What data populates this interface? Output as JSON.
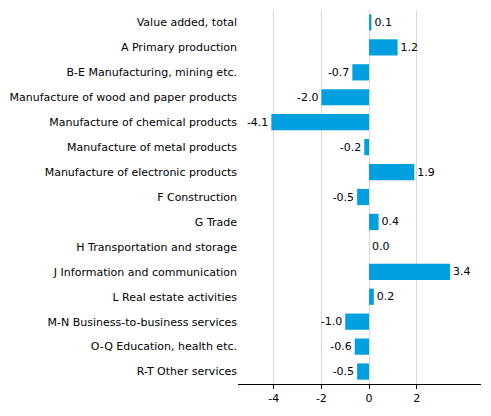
{
  "chart_data": {
    "type": "bar",
    "orientation": "horizontal",
    "categories": [
      "Value added, total",
      "A Primary production",
      "B-E Manufacturing, mining etc.",
      "Manufacture of wood and paper products",
      "Manufacture of chemical products",
      "Manufacture of metal products",
      "Manufacture of electronic products",
      "F Construction",
      "G Trade",
      "H Transportation and storage",
      "J Information and communication",
      "L Real estate activities",
      "M-N Business-to-business services",
      "O-Q Education, health etc.",
      "R-T Other services"
    ],
    "values": [
      0.1,
      1.2,
      -0.7,
      -2.0,
      -4.1,
      -0.2,
      1.9,
      -0.5,
      0.4,
      0.0,
      3.4,
      0.2,
      -1.0,
      -0.6,
      -0.5
    ],
    "value_labels": [
      "0.1",
      "1.2",
      "-0.7",
      "-2.0",
      "-4.1",
      "-0.2",
      "1.9",
      "-0.5",
      "0.4",
      "0.0",
      "3.4",
      "0.2",
      "-1.0",
      "-0.6",
      "-0.5"
    ],
    "color": "#009fdf",
    "data_labels": true,
    "xlim": [
      -5.5,
      4.7
    ],
    "xticks": [
      -4,
      -2,
      0,
      2
    ],
    "grid": true
  }
}
